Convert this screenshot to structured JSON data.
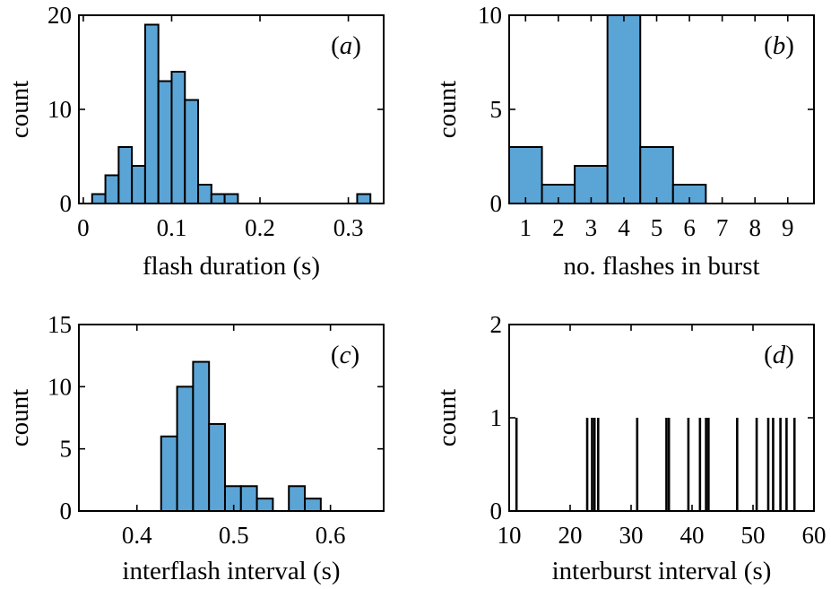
{
  "colors": {
    "bar_fill": "#5ba4d6",
    "bar_edge": "#000000",
    "spike": "#000000"
  },
  "chart_data": [
    {
      "id": "a",
      "type": "bar",
      "panel_label": "a",
      "title": "",
      "xlabel": "flash duration (s)",
      "ylabel": "count",
      "xlim": [
        -0.005,
        0.34
      ],
      "ylim": [
        0,
        20
      ],
      "xticks": [
        0,
        0.1,
        0.2,
        0.3
      ],
      "xtick_labels": [
        "0",
        "0.1",
        "0.2",
        "0.3"
      ],
      "yticks": [
        0,
        10,
        20
      ],
      "ytick_labels": [
        "0",
        "10",
        "20"
      ],
      "bin_edges": [
        0.01,
        0.025,
        0.04,
        0.055,
        0.07,
        0.085,
        0.1,
        0.115,
        0.13,
        0.145,
        0.16,
        0.175,
        0.19,
        0.205,
        0.22,
        0.235,
        0.25,
        0.265,
        0.28,
        0.295,
        0.31,
        0.325
      ],
      "values": [
        1,
        3,
        6,
        4,
        19,
        13,
        14,
        11,
        2,
        1,
        1,
        0,
        0,
        0,
        0,
        0,
        0,
        0,
        0,
        0,
        1
      ]
    },
    {
      "id": "b",
      "type": "bar",
      "panel_label": "b",
      "title": "",
      "xlabel": "no. flashes in burst",
      "ylabel": "count",
      "xlim": [
        0.5,
        9.8
      ],
      "ylim": [
        0,
        10
      ],
      "xticks": [
        1,
        2,
        3,
        4,
        5,
        6,
        7,
        8,
        9
      ],
      "xtick_labels": [
        "1",
        "2",
        "3",
        "4",
        "5",
        "6",
        "7",
        "8",
        "9"
      ],
      "yticks": [
        0,
        5,
        10
      ],
      "ytick_labels": [
        "0",
        "5",
        "10"
      ],
      "bin_edges": [
        0.5,
        1.5,
        2.5,
        3.5,
        4.5,
        5.5,
        6.5
      ],
      "values": [
        3,
        1,
        2,
        10,
        3,
        1
      ]
    },
    {
      "id": "c",
      "type": "bar",
      "panel_label": "c",
      "title": "",
      "xlabel": "interflash interval (s)",
      "ylabel": "count",
      "xlim": [
        0.34,
        0.655
      ],
      "ylim": [
        0,
        15
      ],
      "xticks": [
        0.4,
        0.5,
        0.6
      ],
      "xtick_labels": [
        "0.4",
        "0.5",
        "0.6"
      ],
      "yticks": [
        0,
        5,
        10,
        15
      ],
      "ytick_labels": [
        "0",
        "5",
        "10",
        "15"
      ],
      "bin_edges": [
        0.425,
        0.4415,
        0.458,
        0.4745,
        0.491,
        0.5075,
        0.524,
        0.5405,
        0.557,
        0.5735,
        0.59
      ],
      "values": [
        6,
        10,
        12,
        7,
        2,
        2,
        1,
        0,
        2,
        1
      ]
    },
    {
      "id": "d",
      "type": "bar",
      "panel_label": "d",
      "title": "",
      "xlabel": "interburst interval (s)",
      "ylabel": "count",
      "xlim": [
        10,
        60
      ],
      "ylim": [
        0,
        2
      ],
      "xticks": [
        10,
        20,
        30,
        40,
        50,
        60
      ],
      "xtick_labels": [
        "10",
        "20",
        "30",
        "40",
        "50",
        "60"
      ],
      "yticks": [
        0,
        1,
        2
      ],
      "ytick_labels": [
        "0",
        "1",
        "2"
      ],
      "x": [
        11.2,
        22.8,
        23.6,
        24.0,
        24.6,
        31.0,
        35.8,
        36.2,
        39.4,
        41.3,
        42.3,
        42.7,
        47.4,
        50.6,
        52.5,
        53.3,
        54.5,
        55.5,
        56.8
      ],
      "values": [
        1,
        1,
        1,
        1,
        1,
        1,
        1,
        1,
        1,
        1,
        1,
        1,
        1,
        1,
        1,
        1,
        1,
        1,
        1
      ]
    }
  ]
}
